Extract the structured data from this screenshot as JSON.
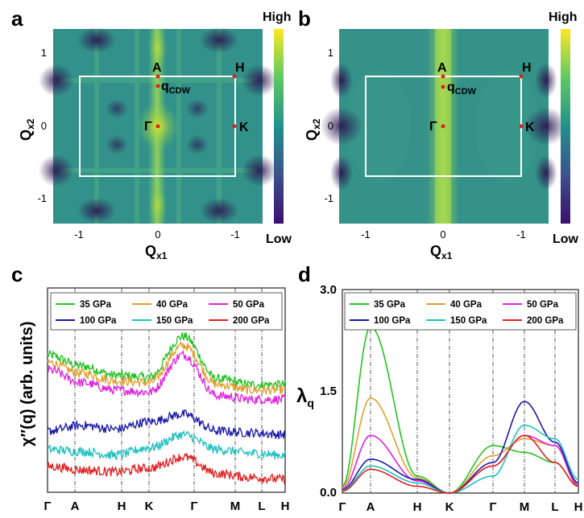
{
  "panel_a": {
    "letter": "a",
    "colorbar": {
      "high": "High",
      "low": "Low"
    },
    "xlabel_main": "Q",
    "xlabel_sub": "x1",
    "ylabel_main": "Q",
    "ylabel_sub": "x2",
    "xticks": [
      "-1",
      "0",
      "-1"
    ],
    "yticks": [
      "1",
      "0",
      "-1"
    ],
    "points": {
      "A": "A",
      "H": "H",
      "G": "Γ",
      "K": "K",
      "q_main": "q",
      "q_sub": "CDW"
    }
  },
  "panel_b": {
    "letter": "b",
    "colorbar": {
      "high": "High",
      "low": "Low"
    },
    "xlabel_main": "Q",
    "xlabel_sub": "x1",
    "ylabel_main": "Q",
    "ylabel_sub": "x2",
    "xticks": [
      "-1",
      "0",
      "-1"
    ],
    "yticks": [
      "1",
      "0",
      "-1"
    ],
    "points": {
      "A": "A",
      "H": "H",
      "G": "Γ",
      "K": "K",
      "q_main": "q",
      "q_sub": "CDW"
    }
  },
  "colors": {
    "s35": "#22c322",
    "s40": "#e0a030",
    "s50": "#e020e0",
    "s100": "#1a1aa8",
    "s150": "#20c0c0",
    "s200": "#e02020",
    "bz_box": "#ffffff",
    "point": "#e02020"
  },
  "chart_data": [
    {
      "type": "line",
      "panel": "c",
      "ylabel": "χ″(q) (arb. units)",
      "path_labels": [
        "Γ",
        "A",
        "H",
        "K",
        "Γ",
        "M",
        "L",
        "H"
      ],
      "legend": [
        "35 GPa",
        "40 GPa",
        "50 GPa",
        "100 GPa",
        "150 GPa",
        "200 GPa"
      ],
      "series": [
        {
          "name": "35 GPa",
          "values": [
            0.74,
            0.68,
            0.63,
            0.62,
            0.84,
            0.61,
            0.58,
            0.58
          ]
        },
        {
          "name": "40 GPa",
          "values": [
            0.7,
            0.64,
            0.6,
            0.59,
            0.79,
            0.58,
            0.55,
            0.55
          ]
        },
        {
          "name": "50 GPa",
          "values": [
            0.66,
            0.59,
            0.55,
            0.54,
            0.74,
            0.52,
            0.5,
            0.5
          ]
        },
        {
          "name": "100 GPa",
          "values": [
            0.33,
            0.36,
            0.34,
            0.38,
            0.42,
            0.33,
            0.32,
            0.31
          ]
        },
        {
          "name": "150 GPa",
          "values": [
            0.23,
            0.22,
            0.2,
            0.24,
            0.31,
            0.23,
            0.21,
            0.2
          ]
        },
        {
          "name": "200 GPa",
          "values": [
            0.14,
            0.12,
            0.11,
            0.13,
            0.19,
            0.1,
            0.08,
            0.07
          ]
        }
      ]
    },
    {
      "type": "line",
      "panel": "d",
      "ylabel_main": "λ",
      "ylabel_sub": "q",
      "yticks": [
        "0.0",
        "1.5",
        "3.0"
      ],
      "ylim": [
        0.0,
        3.0
      ],
      "path_labels": [
        "Γ",
        "A",
        "H",
        "K",
        "Γ",
        "M",
        "L",
        "H"
      ],
      "legend": [
        "35 GPa",
        "40 GPa",
        "50 GPa",
        "100 GPa",
        "150 GPa",
        "200 GPa"
      ],
      "series": [
        {
          "name": "35 GPa",
          "values": [
            0.1,
            2.45,
            0.25,
            0.0,
            0.7,
            0.6,
            0.45,
            0.1
          ]
        },
        {
          "name": "40 GPa",
          "values": [
            0.08,
            1.4,
            0.22,
            0.0,
            0.55,
            0.8,
            0.7,
            0.1
          ]
        },
        {
          "name": "50 GPa",
          "values": [
            0.06,
            0.85,
            0.18,
            0.0,
            0.4,
            0.85,
            0.7,
            0.12
          ]
        },
        {
          "name": "100 GPa",
          "values": [
            0.05,
            0.5,
            0.2,
            0.0,
            0.45,
            1.35,
            0.75,
            0.15
          ]
        },
        {
          "name": "150 GPa",
          "values": [
            0.04,
            0.4,
            0.15,
            0.0,
            0.25,
            1.0,
            0.8,
            0.2
          ]
        },
        {
          "name": "200 GPa",
          "values": [
            0.03,
            0.35,
            0.1,
            0.0,
            0.4,
            0.85,
            0.45,
            0.1
          ]
        }
      ]
    }
  ]
}
